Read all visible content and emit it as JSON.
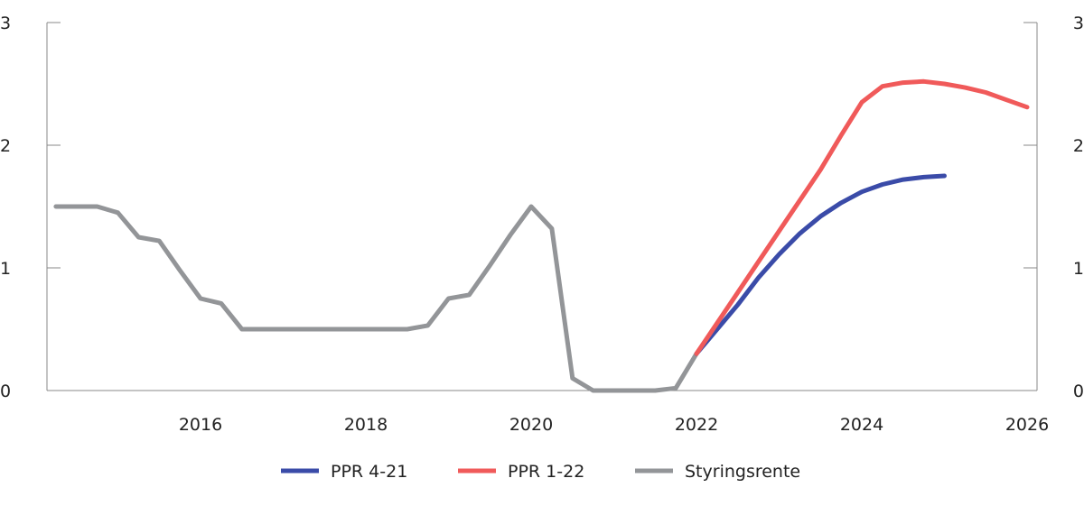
{
  "chart_data": {
    "type": "line",
    "title": "",
    "xlabel": "",
    "ylabel": "",
    "xlim": [
      2014.0,
      2026.25
    ],
    "ylim": [
      0,
      3
    ],
    "y_ticks": [
      "0",
      "1",
      "2",
      "3"
    ],
    "y_tick_values": [
      0,
      1,
      2,
      3
    ],
    "x_ticks": [
      "2016",
      "2018",
      "2020",
      "2022",
      "2024",
      "2026"
    ],
    "x_tick_values": [
      2016,
      2018,
      2020,
      2022,
      2024,
      2026
    ],
    "grid": false,
    "legend_placement": "bottom",
    "series": [
      {
        "name": "PPR 4-21",
        "color": "#3a4ba8",
        "x": [
          2022.0,
          2022.25,
          2022.5,
          2022.75,
          2023.0,
          2023.25,
          2023.5,
          2023.75,
          2024.0,
          2024.25,
          2024.5,
          2024.75,
          2025.0
        ],
        "values": [
          0.3,
          0.5,
          0.7,
          0.92,
          1.11,
          1.28,
          1.42,
          1.53,
          1.62,
          1.68,
          1.72,
          1.74,
          1.75
        ]
      },
      {
        "name": "PPR 1-22",
        "color": "#f05a5a",
        "x": [
          2022.0,
          2022.25,
          2022.5,
          2022.75,
          2023.0,
          2023.25,
          2023.5,
          2023.75,
          2024.0,
          2024.25,
          2024.5,
          2024.75,
          2025.0,
          2025.25,
          2025.5,
          2025.75,
          2026.0
        ],
        "values": [
          0.3,
          0.55,
          0.8,
          1.05,
          1.3,
          1.55,
          1.8,
          2.08,
          2.35,
          2.48,
          2.51,
          2.52,
          2.5,
          2.47,
          2.43,
          2.37,
          2.31
        ]
      },
      {
        "name": "Styringsrente",
        "color": "#939598",
        "x": [
          2014.25,
          2014.5,
          2014.75,
          2015.0,
          2015.25,
          2015.5,
          2015.75,
          2016.0,
          2016.25,
          2016.5,
          2016.75,
          2017.0,
          2017.25,
          2017.5,
          2017.75,
          2018.0,
          2018.25,
          2018.5,
          2018.75,
          2019.0,
          2019.25,
          2019.5,
          2019.75,
          2020.0,
          2020.25,
          2020.5,
          2020.75,
          2021.0,
          2021.25,
          2021.5,
          2021.75,
          2022.0
        ],
        "values": [
          1.5,
          1.5,
          1.5,
          1.45,
          1.25,
          1.22,
          0.98,
          0.75,
          0.71,
          0.5,
          0.5,
          0.5,
          0.5,
          0.5,
          0.5,
          0.5,
          0.5,
          0.5,
          0.53,
          0.75,
          0.78,
          1.02,
          1.27,
          1.5,
          1.32,
          0.1,
          0,
          0,
          0,
          0,
          0.02,
          0.3
        ]
      }
    ]
  }
}
